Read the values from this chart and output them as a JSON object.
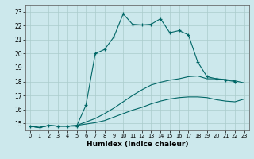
{
  "xlabel": "Humidex (Indice chaleur)",
  "bg_color": "#cce8ec",
  "grid_color": "#aacccc",
  "line_color": "#006666",
  "xlim": [
    -0.5,
    23.5
  ],
  "ylim": [
    14.5,
    23.5
  ],
  "xticks": [
    0,
    1,
    2,
    3,
    4,
    5,
    6,
    7,
    8,
    9,
    10,
    11,
    12,
    13,
    14,
    15,
    16,
    17,
    18,
    19,
    20,
    21,
    22,
    23
  ],
  "yticks": [
    15,
    16,
    17,
    18,
    19,
    20,
    21,
    22,
    23
  ],
  "line1_x": [
    0,
    1,
    2,
    3,
    4,
    5,
    6,
    7,
    8,
    9,
    10,
    11,
    12,
    13,
    14,
    15,
    16,
    17,
    18,
    19,
    20,
    21,
    22
  ],
  "line1_y": [
    14.8,
    14.7,
    14.85,
    14.8,
    14.8,
    14.8,
    16.3,
    20.0,
    20.3,
    21.2,
    22.85,
    22.1,
    22.05,
    22.1,
    22.5,
    21.5,
    21.65,
    21.35,
    19.4,
    18.35,
    18.2,
    18.1,
    18.0
  ],
  "line2_x": [
    0,
    1,
    2,
    3,
    4,
    5,
    6,
    7,
    8,
    9,
    10,
    11,
    12,
    13,
    14,
    15,
    16,
    17,
    18,
    19,
    20,
    21,
    22,
    23
  ],
  "line2_y": [
    14.8,
    14.7,
    14.85,
    14.8,
    14.8,
    14.85,
    15.1,
    15.35,
    15.7,
    16.1,
    16.55,
    17.0,
    17.4,
    17.75,
    17.95,
    18.1,
    18.2,
    18.35,
    18.4,
    18.2,
    18.2,
    18.15,
    18.05,
    17.9
  ],
  "line3_x": [
    0,
    1,
    2,
    3,
    4,
    5,
    6,
    7,
    8,
    9,
    10,
    11,
    12,
    13,
    14,
    15,
    16,
    17,
    18,
    19,
    20,
    21,
    22,
    23
  ],
  "line3_y": [
    14.8,
    14.7,
    14.85,
    14.8,
    14.8,
    14.85,
    14.95,
    15.05,
    15.2,
    15.45,
    15.7,
    15.95,
    16.15,
    16.4,
    16.6,
    16.75,
    16.85,
    16.9,
    16.9,
    16.85,
    16.7,
    16.6,
    16.55,
    16.75
  ]
}
